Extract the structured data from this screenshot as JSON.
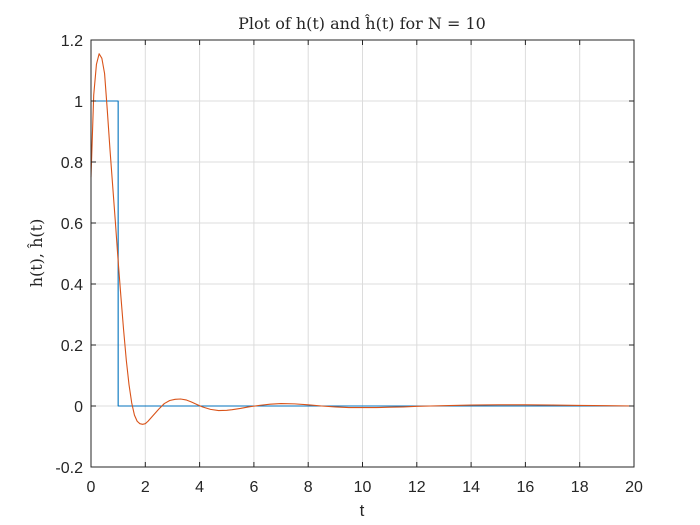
{
  "chart_data": {
    "type": "line",
    "title": "Plot of h(t) and ĥ(t) for N = 10",
    "xlabel": "t",
    "ylabel": "h(t), ĥ(t)",
    "xlim": [
      0,
      20
    ],
    "ylim": [
      -0.2,
      1.2
    ],
    "x_ticks": [
      0,
      2,
      4,
      6,
      8,
      10,
      12,
      14,
      16,
      18,
      20
    ],
    "y_ticks": [
      -0.2,
      0,
      0.2,
      0.4,
      0.6,
      0.8,
      1,
      1.2
    ],
    "x_tick_labels": [
      "0",
      "2",
      "4",
      "6",
      "8",
      "10",
      "12",
      "14",
      "16",
      "18",
      "20"
    ],
    "y_tick_labels": [
      "-0.2",
      "0",
      "0.2",
      "0.4",
      "0.6",
      "0.8",
      "1",
      "1.2"
    ],
    "grid": true,
    "series": [
      {
        "color": "#0072BD",
        "x": [
          0,
          1,
          1,
          20
        ],
        "y": [
          1,
          1,
          0,
          0
        ]
      },
      {
        "color": "#D95319",
        "x": [
          0,
          0.1,
          0.2,
          0.3,
          0.4,
          0.5,
          0.6,
          0.7,
          0.8,
          0.9,
          1.0,
          1.1,
          1.2,
          1.3,
          1.4,
          1.5,
          1.6,
          1.7,
          1.8,
          1.9,
          2.0,
          2.1,
          2.3,
          2.5,
          2.7,
          2.9,
          3.1,
          3.3,
          3.5,
          3.7,
          3.9,
          4.1,
          4.4,
          4.7,
          5.0,
          5.2,
          5.5,
          5.8,
          6.2,
          6.6,
          7.0,
          7.5,
          8.0,
          8.5,
          9.0,
          9.5,
          10.0,
          10.5,
          11.0,
          11.5,
          12.0,
          12.5,
          13.0,
          14.0,
          15.0,
          15.5,
          16.0,
          17.0,
          18.0,
          19.0,
          20.0
        ],
        "y": [
          0.75,
          1.02,
          1.12,
          1.155,
          1.14,
          1.09,
          0.97,
          0.84,
          0.72,
          0.6,
          0.475,
          0.36,
          0.25,
          0.15,
          0.07,
          0.01,
          -0.03,
          -0.05,
          -0.058,
          -0.06,
          -0.058,
          -0.05,
          -0.03,
          -0.01,
          0.008,
          0.018,
          0.022,
          0.023,
          0.02,
          0.013,
          0.005,
          -0.003,
          -0.011,
          -0.015,
          -0.014,
          -0.012,
          -0.008,
          -0.003,
          0.002,
          0.006,
          0.008,
          0.007,
          0.004,
          0.0,
          -0.003,
          -0.005,
          -0.005,
          -0.005,
          -0.004,
          -0.003,
          -0.001,
          0.0,
          0.001,
          0.003,
          0.004,
          0.004,
          0.004,
          0.003,
          0.002,
          0.001,
          0.0
        ]
      }
    ]
  }
}
